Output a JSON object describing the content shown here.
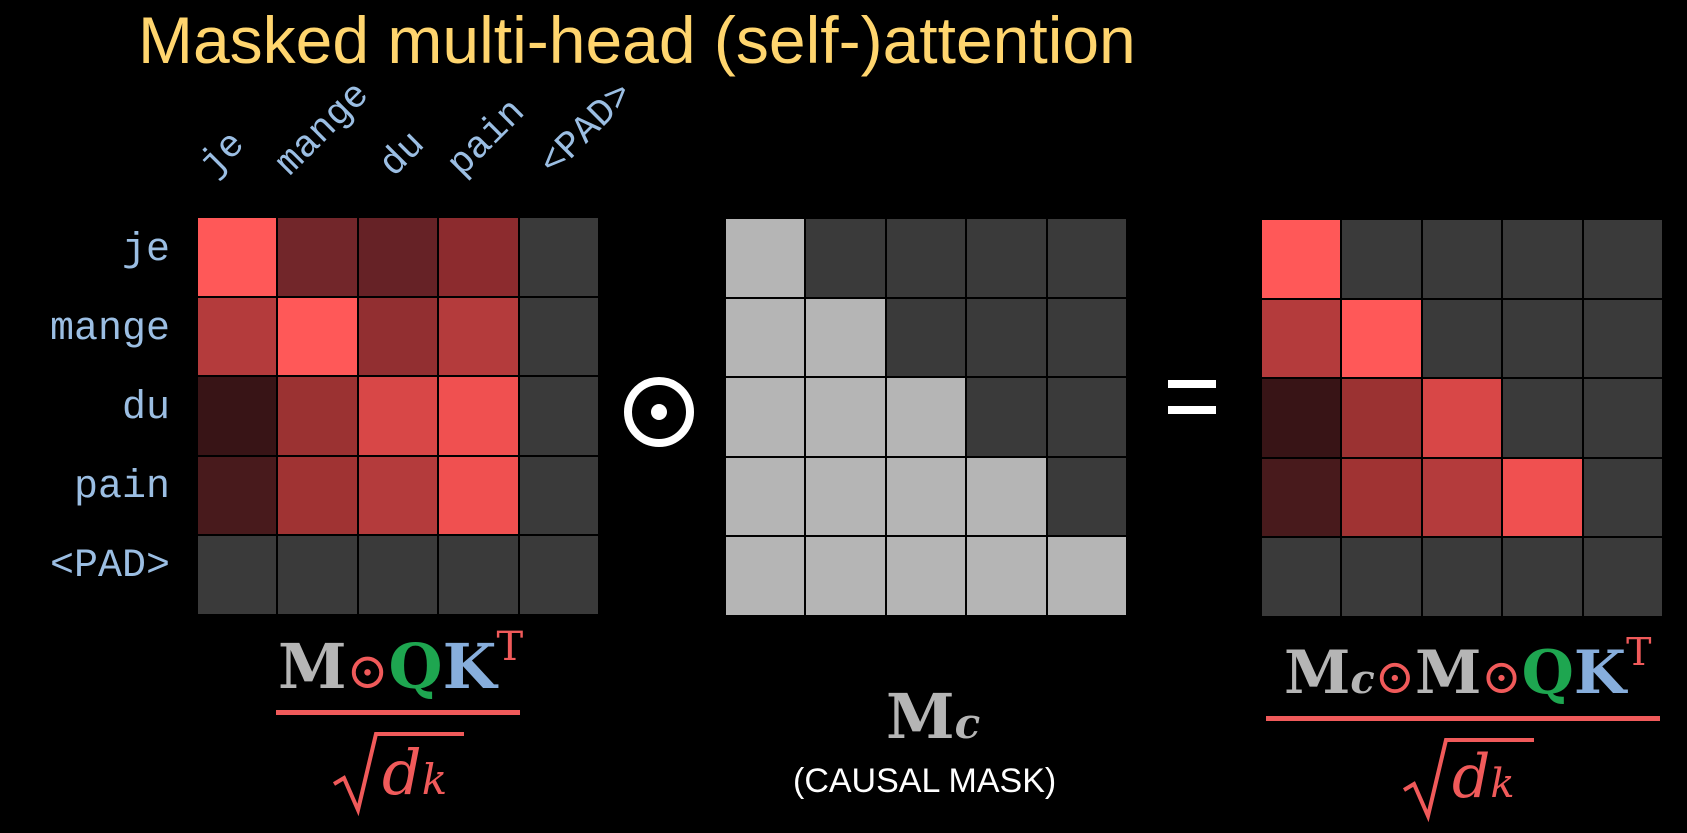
{
  "title": "Masked multi-head (self-)attention",
  "tokens": [
    "je",
    "mange",
    "du",
    "pain",
    "<PAD>"
  ],
  "colors": {
    "title": "#FFD56E",
    "token_label": "#9BBEE3",
    "masked_cell": "#3a3a3a",
    "mask_on": "#B5B5B5",
    "mask_off": "#3a3a3a",
    "fraction_bar": "#F05A5A"
  },
  "matrices": {
    "attention": [
      [
        "#FF5858",
        "#72262A",
        "#662226",
        "#8C2B2E",
        "#3a3a3a"
      ],
      [
        "#B43B3C",
        "#FF5858",
        "#922F31",
        "#B43B3C",
        "#3a3a3a"
      ],
      [
        "#381416",
        "#9B3232",
        "#D84747",
        "#F05050",
        "#3a3a3a"
      ],
      [
        "#481A1C",
        "#A03333",
        "#B43B3C",
        "#F05050",
        "#3a3a3a"
      ],
      [
        "#3a3a3a",
        "#3a3a3a",
        "#3a3a3a",
        "#3a3a3a",
        "#3a3a3a"
      ]
    ],
    "causal_mask": [
      [
        1,
        0,
        0,
        0,
        0
      ],
      [
        1,
        1,
        0,
        0,
        0
      ],
      [
        1,
        1,
        1,
        0,
        0
      ],
      [
        1,
        1,
        1,
        1,
        0
      ],
      [
        1,
        1,
        1,
        1,
        1
      ]
    ],
    "result": [
      [
        "#FF5858",
        "#3a3a3a",
        "#3a3a3a",
        "#3a3a3a",
        "#3a3a3a"
      ],
      [
        "#B43B3C",
        "#FF5858",
        "#3a3a3a",
        "#3a3a3a",
        "#3a3a3a"
      ],
      [
        "#381416",
        "#9B3232",
        "#D84747",
        "#3a3a3a",
        "#3a3a3a"
      ],
      [
        "#481A1C",
        "#A03333",
        "#B43B3C",
        "#F05050",
        "#3a3a3a"
      ],
      [
        "#3a3a3a",
        "#3a3a3a",
        "#3a3a3a",
        "#3a3a3a",
        "#3a3a3a"
      ]
    ]
  },
  "formulas": {
    "left": {
      "M": "M",
      "odot": "⊙",
      "Q": "Q",
      "K": "K",
      "T": "T",
      "d": "d",
      "k": "k"
    },
    "middle": {
      "M": "M",
      "c": "c",
      "caption": "(CAUSAL MASK)"
    },
    "right": {
      "M1": "M",
      "c": "c",
      "odot1": "⊙",
      "M2": "M",
      "odot2": "⊙",
      "Q": "Q",
      "K": "K",
      "T": "T",
      "d": "d",
      "k": "k"
    }
  }
}
